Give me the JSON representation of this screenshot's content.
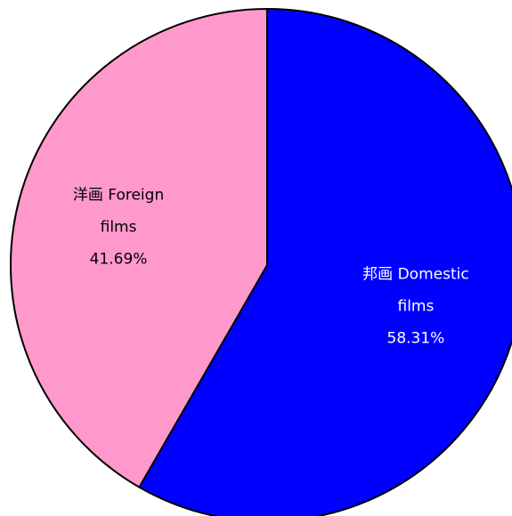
{
  "chart_data": {
    "type": "pie",
    "categories": [
      "邦画 Domestic films",
      "洋画 Foreign films"
    ],
    "values": [
      58.31,
      41.69
    ],
    "value_labels": [
      "58.31%",
      "41.69%"
    ],
    "colors": [
      "#0000ff",
      "#ff99cc"
    ],
    "label_colors": [
      "#ffffff",
      "#000000"
    ]
  }
}
